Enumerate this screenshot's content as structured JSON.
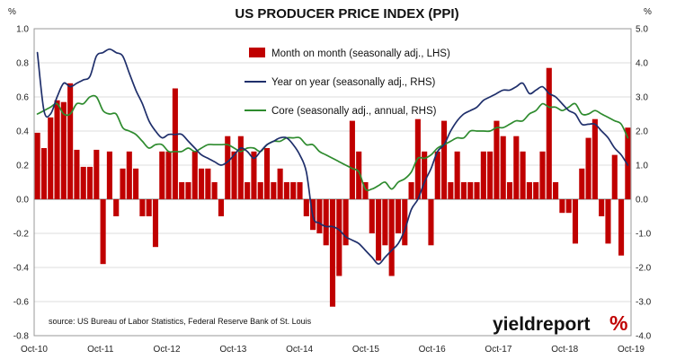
{
  "chart_data": {
    "type": "bar",
    "title": "US PRODUCER PRICE INDEX (PPI)",
    "left_unit": "%",
    "right_unit": "%",
    "ylim_left": [
      -0.8,
      1.0
    ],
    "ylim_right": [
      -4.0,
      5.0
    ],
    "left_ticks": [
      "1.0",
      "0.8",
      "0.6",
      "0.4",
      "0.2",
      "0.0",
      "-0.2",
      "-0.4",
      "-0.6",
      "-0.8"
    ],
    "right_ticks": [
      "5.0",
      "4.0",
      "3.0",
      "2.0",
      "1.0",
      "0.0",
      "-1.0",
      "-2.0",
      "-3.0",
      "-4.0"
    ],
    "x_ticks": [
      "Oct-10",
      "Oct-11",
      "Oct-12",
      "Oct-13",
      "Oct-14",
      "Oct-15",
      "Oct-16",
      "Oct-17",
      "Oct-18",
      "Oct-19"
    ],
    "grid": true,
    "legend_position": "top-center",
    "x_range": [
      "Oct-10",
      "Oct-19"
    ],
    "series": [
      {
        "name": "Month on month (seasonally adj., LHS)",
        "kind": "bar",
        "axis": "left",
        "color": "#c00000",
        "values": [
          0.39,
          0.3,
          0.48,
          0.58,
          0.57,
          0.68,
          0.29,
          0.19,
          0.19,
          0.29,
          -0.38,
          0.28,
          -0.1,
          0.18,
          0.28,
          0.18,
          -0.1,
          -0.1,
          -0.28,
          0.28,
          0.28,
          0.65,
          0.1,
          0.1,
          0.28,
          0.18,
          0.18,
          0.1,
          -0.1,
          0.37,
          0.28,
          0.37,
          0.1,
          0.28,
          0.1,
          0.3,
          0.1,
          0.18,
          0.1,
          0.1,
          0.1,
          -0.1,
          -0.18,
          -0.2,
          -0.27,
          -0.63,
          -0.45,
          -0.27,
          0.46,
          0.28,
          0.1,
          -0.2,
          -0.36,
          -0.27,
          -0.45,
          -0.2,
          -0.27,
          0.1,
          0.47,
          0.28,
          -0.27,
          0.28,
          0.46,
          0.1,
          0.28,
          0.1,
          0.1,
          0.1,
          0.28,
          0.28,
          0.46,
          0.37,
          0.1,
          0.37,
          0.28,
          0.1,
          0.1,
          0.28,
          0.77,
          0.1,
          -0.08,
          -0.08,
          -0.26,
          0.18,
          0.36,
          0.47,
          -0.1,
          -0.26,
          0.26,
          -0.33,
          0.42
        ]
      },
      {
        "name": "Year on year (seasonally adj., RHS)",
        "kind": "line",
        "axis": "right",
        "color": "#1f2f6b",
        "values": [
          4.3,
          2.6,
          2.5,
          3.0,
          3.4,
          3.3,
          3.4,
          3.5,
          3.6,
          4.2,
          4.3,
          4.4,
          4.3,
          4.2,
          3.7,
          3.2,
          2.8,
          2.3,
          2.0,
          1.8,
          1.9,
          1.9,
          1.9,
          1.7,
          1.5,
          1.3,
          1.2,
          1.1,
          1.0,
          1.1,
          1.3,
          1.5,
          1.4,
          1.2,
          1.4,
          1.6,
          1.7,
          1.8,
          1.8,
          1.6,
          1.3,
          0.8,
          -0.5,
          -0.7,
          -0.8,
          -0.8,
          -0.9,
          -1.1,
          -1.2,
          -1.3,
          -1.5,
          -1.7,
          -1.9,
          -1.7,
          -1.5,
          -1.3,
          -0.9,
          -0.3,
          0.0,
          0.5,
          0.9,
          1.4,
          1.6,
          2.0,
          2.3,
          2.5,
          2.6,
          2.7,
          2.9,
          3.0,
          3.1,
          3.2,
          3.2,
          3.3,
          3.4,
          3.1,
          3.2,
          3.3,
          3.1,
          3.0,
          2.8,
          2.6,
          2.5,
          2.2,
          2.2,
          2.2,
          2.0,
          1.8,
          1.5,
          1.3,
          1.0
        ]
      },
      {
        "name": "Core (seasonally adj., annual, RHS)",
        "kind": "line",
        "axis": "right",
        "color": "#2e8b2e",
        "values": [
          2.5,
          2.6,
          2.7,
          2.8,
          2.5,
          2.5,
          2.8,
          2.8,
          3.0,
          3.0,
          2.6,
          2.5,
          2.5,
          2.1,
          2.0,
          1.9,
          1.7,
          1.5,
          1.6,
          1.6,
          1.4,
          1.4,
          1.4,
          1.5,
          1.4,
          1.5,
          1.6,
          1.6,
          1.6,
          1.6,
          1.5,
          1.4,
          1.5,
          1.5,
          1.4,
          1.6,
          1.7,
          1.7,
          1.8,
          1.8,
          1.8,
          1.6,
          1.6,
          1.4,
          1.3,
          1.2,
          1.1,
          1.0,
          0.9,
          0.8,
          0.3,
          0.3,
          0.4,
          0.5,
          0.3,
          0.5,
          0.6,
          0.8,
          1.2,
          1.2,
          1.3,
          1.5,
          1.6,
          1.7,
          1.8,
          1.8,
          2.0,
          2.0,
          2.0,
          2.0,
          2.1,
          2.1,
          2.2,
          2.3,
          2.3,
          2.5,
          2.6,
          2.8,
          2.7,
          2.7,
          2.6,
          2.7,
          2.8,
          2.5,
          2.5,
          2.6,
          2.5,
          2.4,
          2.3,
          2.2,
          1.8
        ]
      }
    ],
    "source": "source: US Bureau of Labor Statistics, Federal Reserve Bank of St. Louis",
    "brand": "yieldreport",
    "brand_mark": "%"
  }
}
